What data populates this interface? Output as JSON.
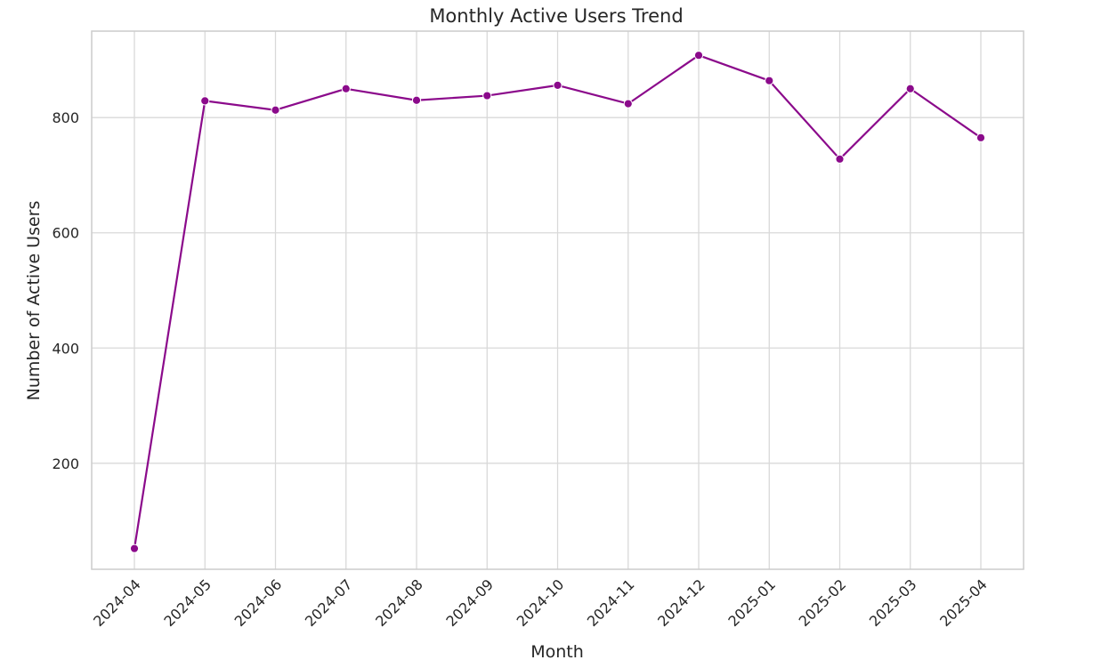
{
  "chart_data": {
    "type": "line",
    "title": "Monthly Active Users Trend",
    "xlabel": "Month",
    "ylabel": "Number of Active Users",
    "categories": [
      "2024-04",
      "2024-05",
      "2024-06",
      "2024-07",
      "2024-08",
      "2024-09",
      "2024-10",
      "2024-11",
      "2024-12",
      "2025-01",
      "2025-02",
      "2025-03",
      "2025-04"
    ],
    "series": [
      {
        "values": [
          52,
          829,
          813,
          850,
          830,
          838,
          856,
          824,
          908,
          864,
          728,
          850,
          765
        ]
      }
    ],
    "ylim": [
      16,
      950
    ],
    "yticks": [
      200,
      400,
      600,
      800
    ],
    "grid": true,
    "line_color": "#8B0A8B",
    "marker": "circle"
  }
}
